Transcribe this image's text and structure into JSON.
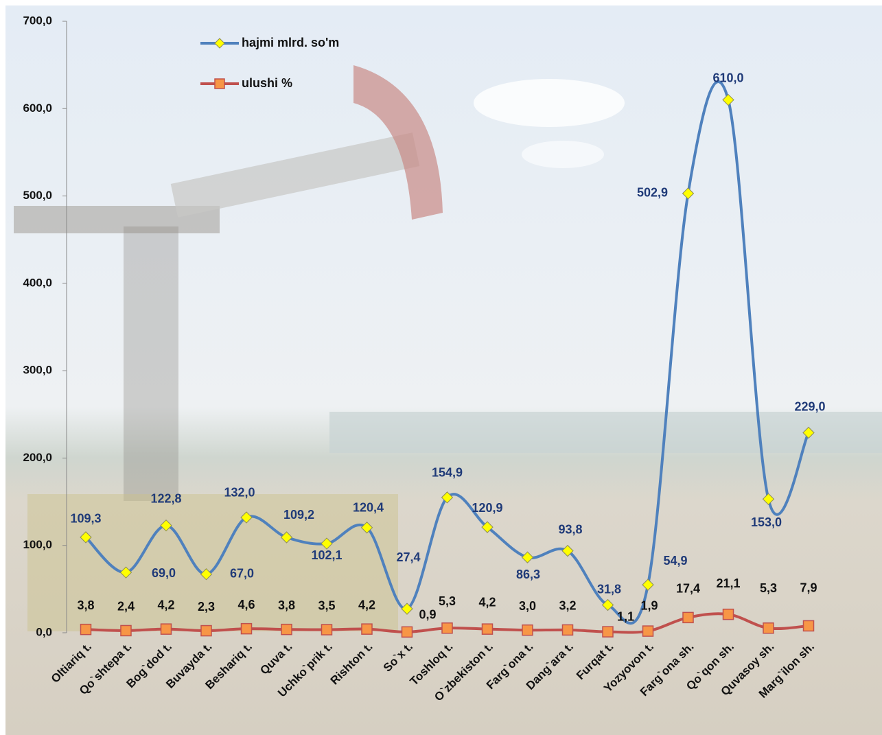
{
  "chart_data": {
    "type": "line",
    "categories": [
      "Oltiariq t.",
      "Qo`shtepa t.",
      "Bog`dod t.",
      "Buvayda t.",
      "Beshariq t.",
      "Quva t.",
      "Uchko`prik t.",
      "Rishton t.",
      "So`x t.",
      "Toshloq t.",
      "O`zbekiston t.",
      "Farg`ona t.",
      "Dang`ara t.",
      "Furqat t.",
      "Yozyovon t.",
      "Farg`ona sh.",
      "Qo`qon sh.",
      "Quvasoy sh.",
      "Marg`ilon sh."
    ],
    "series": [
      {
        "name": "hajmi mlrd. so'm",
        "color": "#4f81bd",
        "marker_color": "#ffff00",
        "values": [
          109.3,
          69.0,
          122.8,
          67.0,
          132.0,
          109.2,
          102.1,
          120.4,
          27.4,
          154.9,
          120.9,
          86.3,
          93.8,
          31.8,
          54.9,
          502.9,
          610.0,
          153.0,
          229.0
        ],
        "value_labels": [
          "109,3",
          "69,0",
          "122,8",
          "67,0",
          "132,0",
          "109,2",
          "102,1",
          "120,4",
          "27,4",
          "154,9",
          "120,9",
          "86,3",
          "93,8",
          "31,8",
          "54,9",
          "502,9",
          "610,0",
          "153,0",
          "229,0"
        ]
      },
      {
        "name": "ulushi %",
        "color": "#c0504d",
        "marker_color": "#f79646",
        "values": [
          3.8,
          2.4,
          4.2,
          2.3,
          4.6,
          3.8,
          3.5,
          4.2,
          0.9,
          5.3,
          4.2,
          3.0,
          3.2,
          1.1,
          1.9,
          17.4,
          21.1,
          5.3,
          7.9
        ],
        "value_labels": [
          "3,8",
          "2,4",
          "4,2",
          "2,3",
          "4,6",
          "3,8",
          "3,5",
          "4,2",
          "0,9",
          "5,3",
          "4,2",
          "3,0",
          "3,2",
          "1,1",
          "1,9",
          "17,4",
          "21,1",
          "5,3",
          "7,9"
        ]
      }
    ],
    "ylim": [
      0,
      700
    ],
    "yticks": [
      {
        "value": 0,
        "label": "0,0"
      },
      {
        "value": 100,
        "label": "100,0"
      },
      {
        "value": 200,
        "label": "200,0"
      },
      {
        "value": 300,
        "label": "300,0"
      },
      {
        "value": 400,
        "label": "400,0"
      },
      {
        "value": 500,
        "label": "500,0"
      },
      {
        "value": 600,
        "label": "600,0"
      },
      {
        "value": 700,
        "label": "700,0"
      }
    ],
    "smooth": true,
    "grid": false,
    "legend": "top-left"
  }
}
